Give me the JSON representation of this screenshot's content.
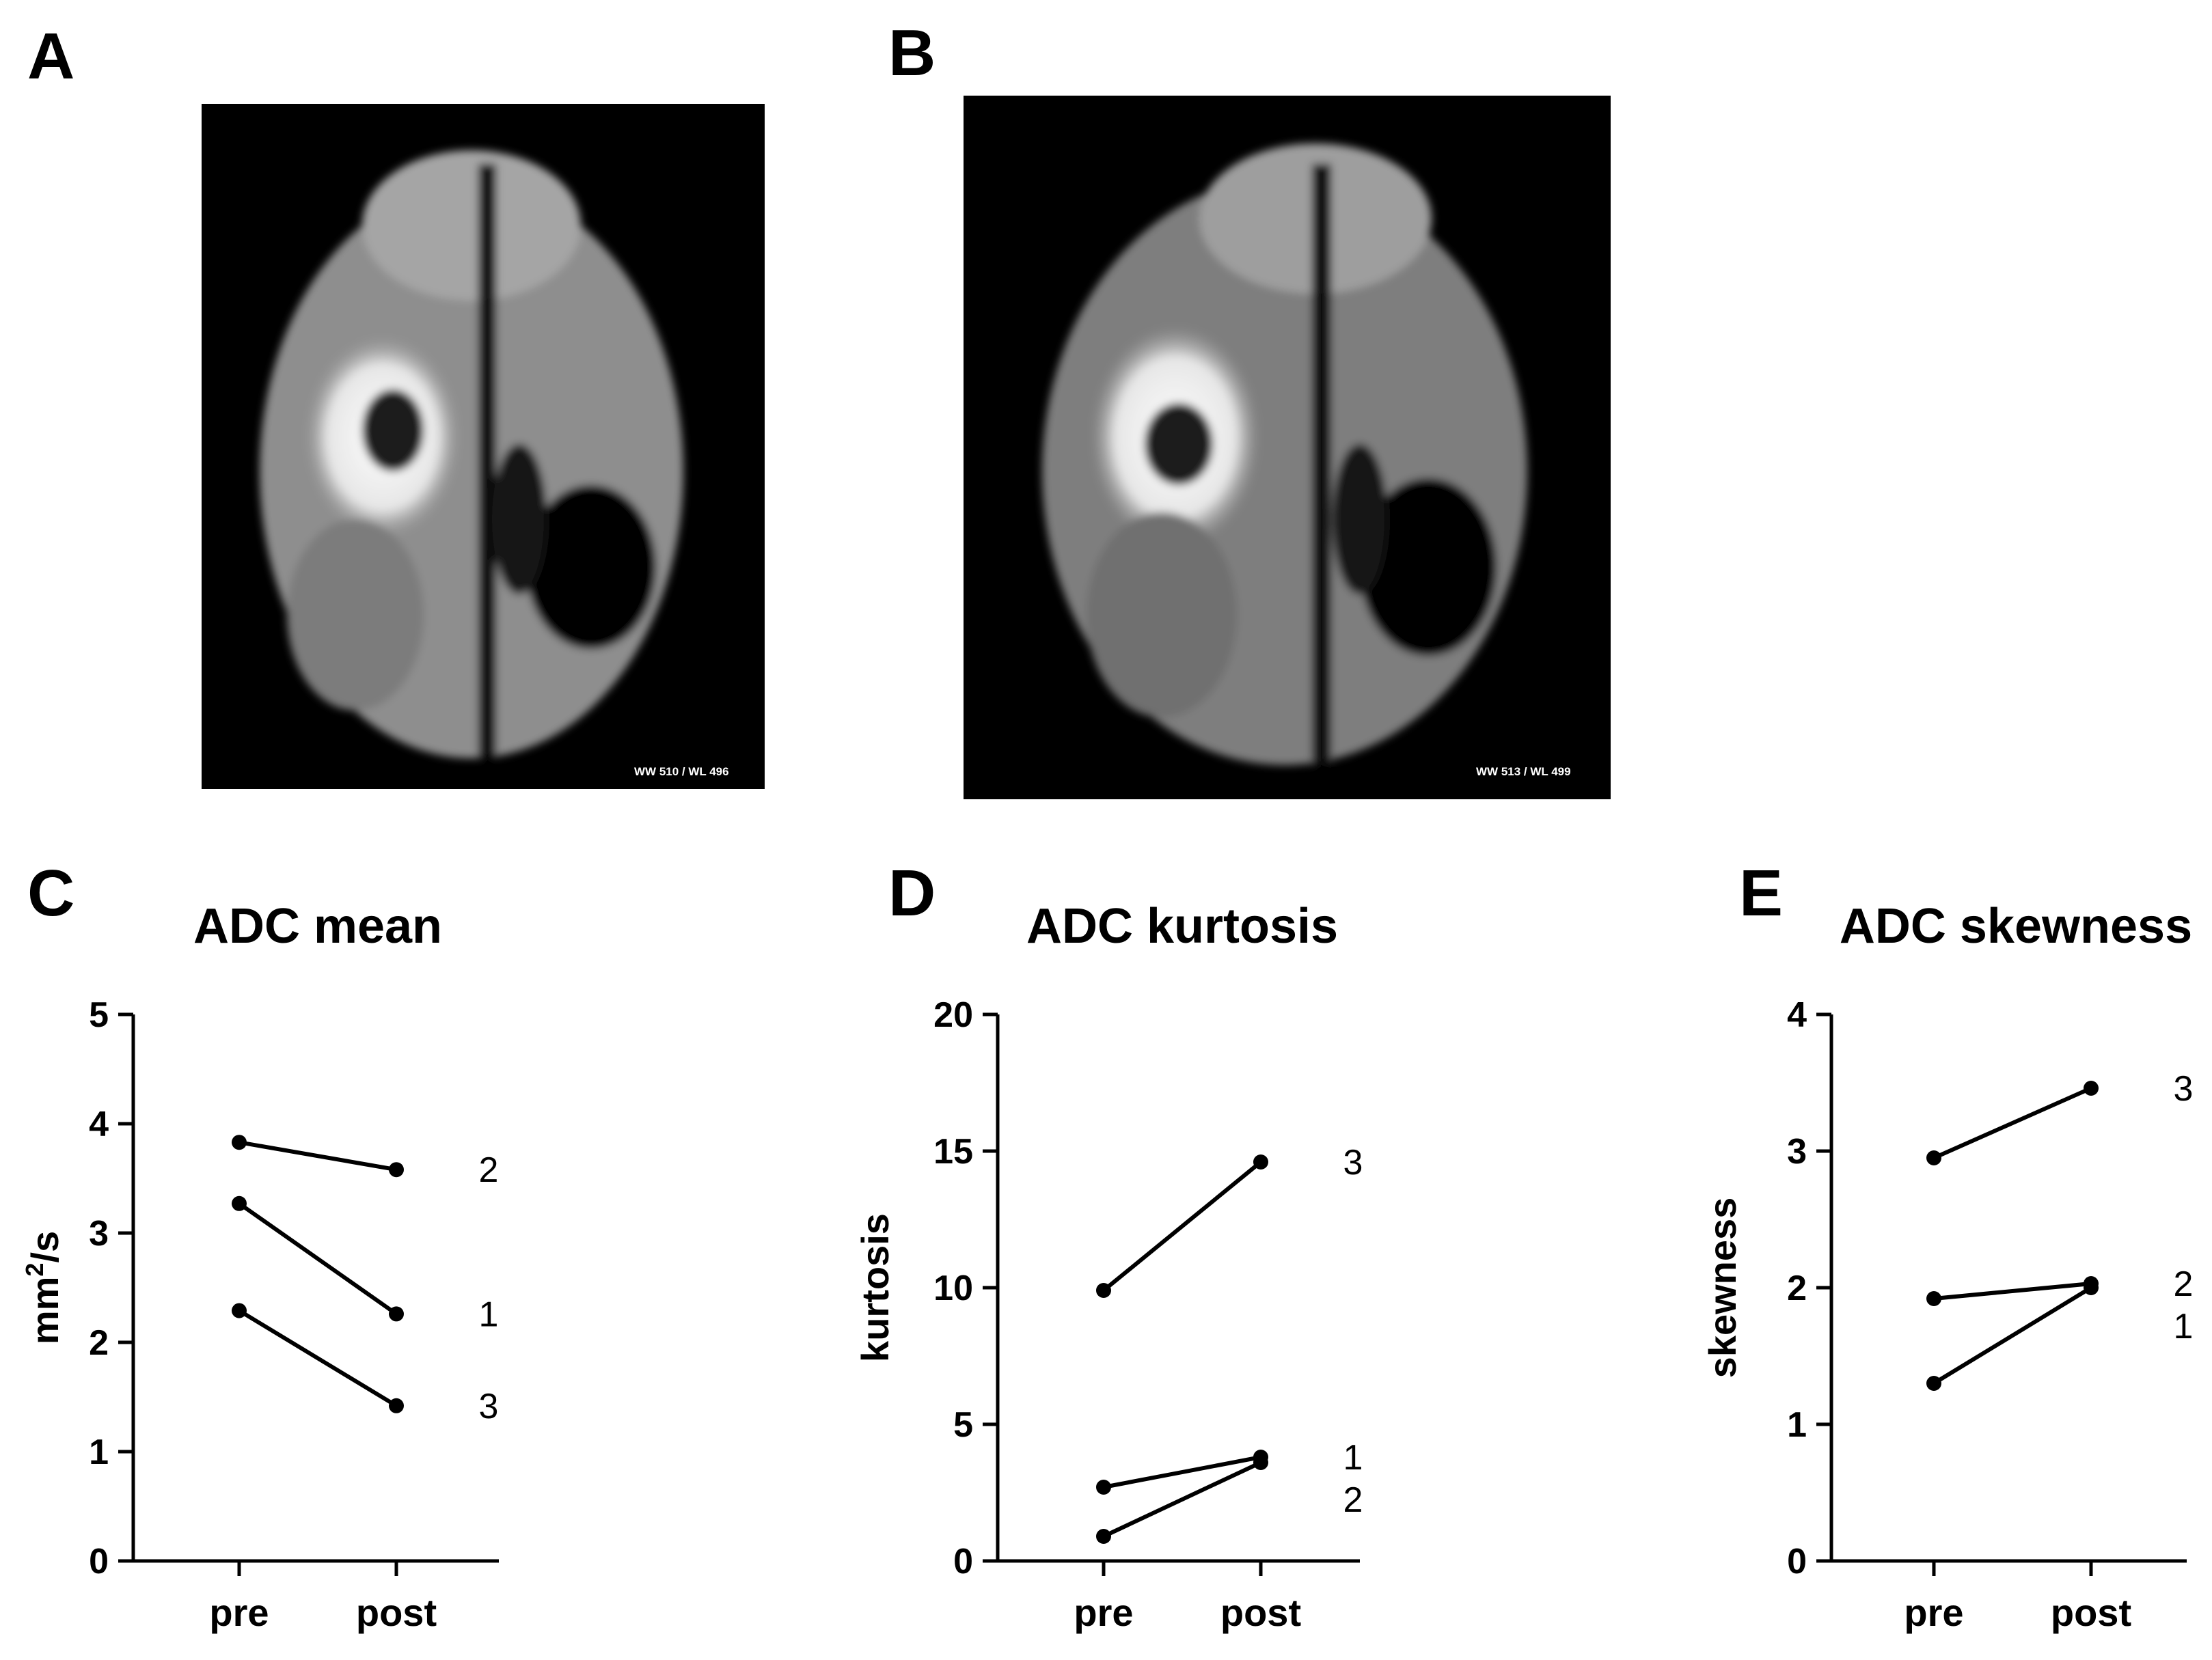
{
  "panels": {
    "A": {
      "letter": "A",
      "overlay": "WW 510 / WL 496"
    },
    "B": {
      "letter": "B",
      "overlay": "WW 513 / WL 499"
    }
  },
  "colors": {
    "mri_background": "#000000",
    "brain_tissue": "#9a9a9a",
    "lesion": "#f0f0f0",
    "line": "#000000"
  },
  "chart_data": [
    {
      "letter": "C",
      "type": "line",
      "title": "ADC mean",
      "ylabel": "mm²/s",
      "ylabel_base": "mm",
      "ylabel_sup": "2",
      "ylabel_rest": "/s",
      "categories": [
        "pre",
        "post"
      ],
      "ylim": [
        0,
        5
      ],
      "yticks": [
        "0",
        "1",
        "2",
        "3",
        "4",
        "5"
      ],
      "series": [
        {
          "name": "1",
          "values": [
            3.27,
            2.26
          ]
        },
        {
          "name": "2",
          "values": [
            3.83,
            3.58
          ]
        },
        {
          "name": "3",
          "values": [
            2.29,
            1.42
          ]
        }
      ]
    },
    {
      "letter": "D",
      "type": "line",
      "title": "ADC kurtosis",
      "ylabel": "kurtosis",
      "categories": [
        "pre",
        "post"
      ],
      "ylim": [
        0,
        20
      ],
      "yticks": [
        "0",
        "5",
        "10",
        "15",
        "20"
      ],
      "series": [
        {
          "name": "1",
          "values": [
            2.7,
            3.8
          ]
        },
        {
          "name": "2",
          "values": [
            0.9,
            3.6
          ]
        },
        {
          "name": "3",
          "values": [
            9.9,
            14.6
          ]
        }
      ]
    },
    {
      "letter": "E",
      "type": "line",
      "title": "ADC skewness",
      "ylabel": "skewness",
      "categories": [
        "pre",
        "post"
      ],
      "ylim": [
        0,
        4
      ],
      "yticks": [
        "0",
        "1",
        "2",
        "3",
        "4"
      ],
      "series": [
        {
          "name": "1",
          "values": [
            1.3,
            2.0
          ]
        },
        {
          "name": "2",
          "values": [
            1.92,
            2.03
          ]
        },
        {
          "name": "3",
          "values": [
            2.95,
            3.46
          ]
        }
      ]
    }
  ]
}
